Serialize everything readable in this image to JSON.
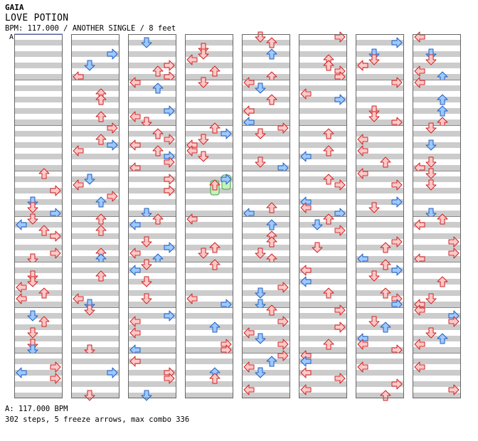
{
  "song": {
    "artist": "GAIA",
    "title": "LOVE POTION",
    "info": "BPM: 117.000 / ANOTHER SINGLE / 8 feet"
  },
  "bpm_marker": "A",
  "footer": {
    "bpm_line": "A: 117.000 BPM",
    "stats_line": "302 steps, 5 freeze arrows, max combo 336"
  },
  "colors": {
    "page_bg": "#ffffff",
    "stripe": "#cccccc",
    "lane_border": "#666666",
    "red_arrow_fill": "#ffc8c8",
    "red_arrow_stroke": "#cc2222",
    "blue_arrow_fill": "#9ec8ff",
    "blue_arrow_stroke": "#2060c0",
    "freeze_fill": "#c8f0c0",
    "freeze_stroke": "#40a040",
    "measure_line": "#888888"
  },
  "chart_data": {
    "type": "step_chart",
    "arrow_directions": [
      "left",
      "down",
      "up",
      "right"
    ],
    "beats_per_measure": 4,
    "measures_per_column": 8,
    "total_measures": 69,
    "empty_leading_measures": 3,
    "steps": 302,
    "freeze_arrows": 5,
    "max_combo": 336,
    "bpm": 117.0,
    "difficulty": "ANOTHER",
    "style": "SINGLE",
    "feet": 8
  }
}
